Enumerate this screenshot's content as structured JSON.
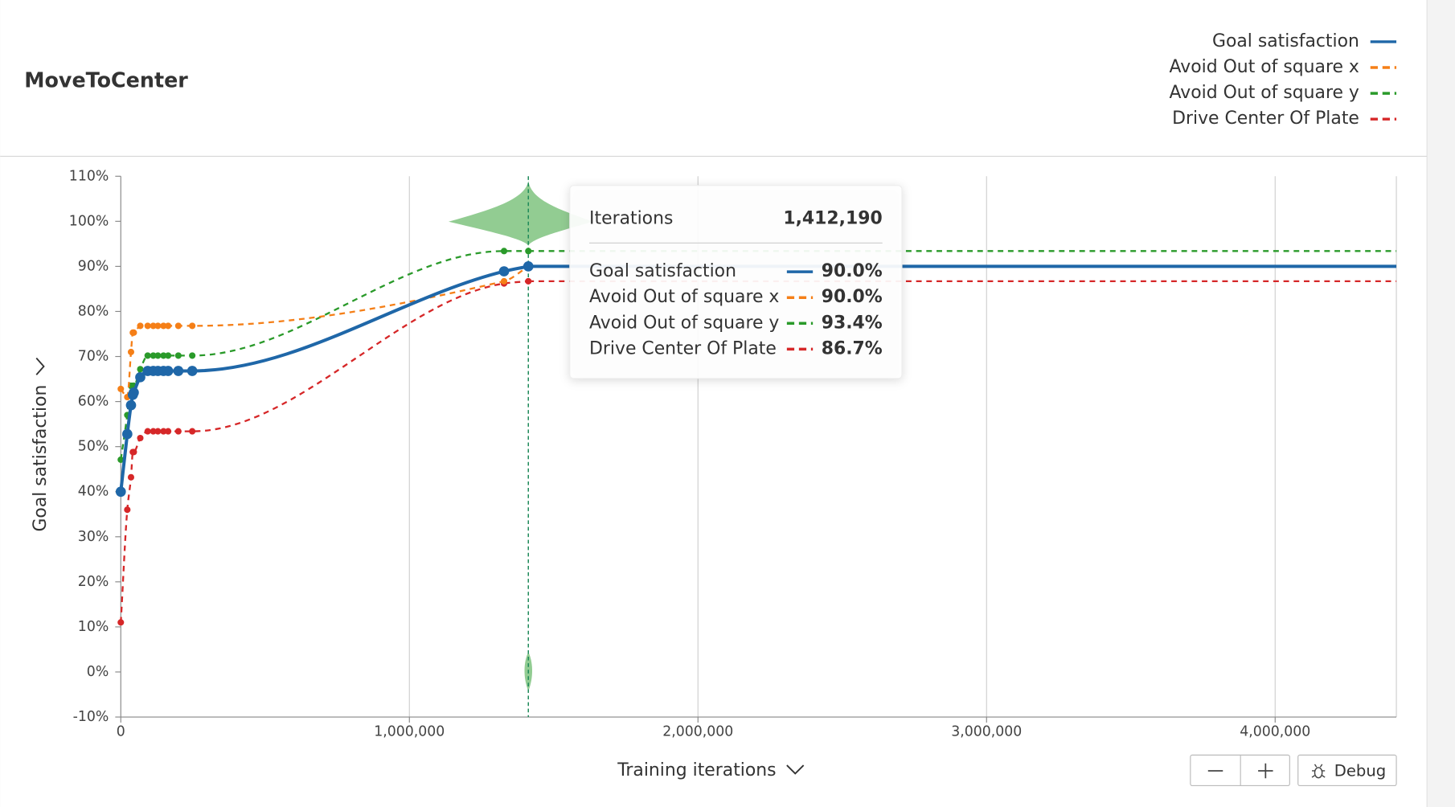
{
  "header": {
    "title": "MoveToCenter"
  },
  "chart_data": {
    "type": "line",
    "xlabel": "Training iterations",
    "ylabel": "Goal satisfaction",
    "x": [
      0,
      22500,
      35400,
      41800,
      45000,
      67500,
      93200,
      112500,
      128600,
      147900,
      164000,
      199400,
      247600,
      1328000,
      1412190
    ],
    "series": [
      {
        "name": "Goal satisfaction",
        "color": "#1f67a8",
        "style": "solid",
        "values": [
          40,
          52.8,
          59.2,
          61.5,
          62,
          65.4,
          66.8,
          66.8,
          66.8,
          66.8,
          66.8,
          66.8,
          66.8,
          88.9,
          90.0
        ]
      },
      {
        "name": "Avoid Out of square x",
        "color": "#f57f17",
        "style": "dashed",
        "values": [
          62.8,
          61,
          71,
          75.3,
          75.3,
          76.8,
          76.8,
          76.8,
          76.8,
          76.8,
          76.8,
          76.8,
          76.8,
          86.7,
          90.0
        ]
      },
      {
        "name": "Avoid Out of square y",
        "color": "#2a9a2a",
        "style": "dashed",
        "values": [
          47.1,
          57,
          63.5,
          63.5,
          63.5,
          67.2,
          70.2,
          70.2,
          70.2,
          70.2,
          70.2,
          70.2,
          70.2,
          93.4,
          93.4
        ]
      },
      {
        "name": "Drive Center Of Plate",
        "color": "#d62728",
        "style": "dashed",
        "values": [
          11,
          36,
          43.2,
          48.8,
          48.8,
          51.9,
          53.4,
          53.4,
          53.4,
          53.4,
          53.4,
          53.4,
          53.4,
          86.2,
          86.7
        ]
      }
    ],
    "xlim": [
      0,
      4420000
    ],
    "xticks": [
      0,
      {
        "value": 1000000,
        "label": "1,000,000"
      },
      {
        "value": 2000000,
        "label": "2,000,000"
      },
      {
        "value": 3000000,
        "label": "3,000,000"
      },
      {
        "value": 4000000,
        "label": "4,000,000"
      }
    ],
    "ylim": [
      -10,
      110
    ],
    "yticks": [
      {
        "value": -10,
        "label": "-10%"
      },
      {
        "value": 0,
        "label": "0%"
      },
      {
        "value": 10,
        "label": "10%"
      },
      {
        "value": 20,
        "label": "20%"
      },
      {
        "value": 30,
        "label": "30%"
      },
      {
        "value": 40,
        "label": "40%"
      },
      {
        "value": 50,
        "label": "50%"
      },
      {
        "value": 60,
        "label": "60%"
      },
      {
        "value": 70,
        "label": "70%"
      },
      {
        "value": 80,
        "label": "80%"
      },
      {
        "value": 90,
        "label": "90%"
      },
      {
        "value": 100,
        "label": "100%"
      },
      {
        "value": 110,
        "label": "110%"
      }
    ],
    "grid": "x",
    "legend": "top-right",
    "hover_x": 1412190
  },
  "tooltip": {
    "label": "Iterations",
    "value": "1,412,190",
    "values": [
      "90.0%",
      "90.0%",
      "93.4%",
      "86.7%"
    ]
  },
  "controls": {
    "debug": "Debug"
  }
}
